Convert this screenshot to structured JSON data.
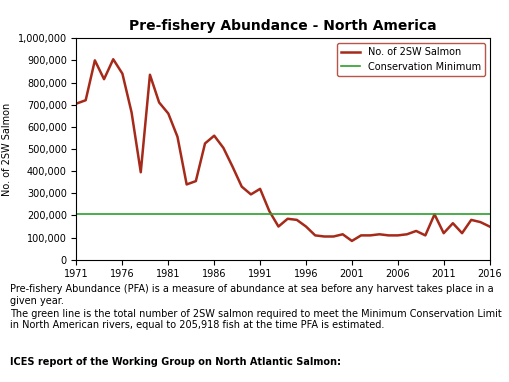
{
  "chart_data": {
    "type": "line",
    "title": "Pre-fishery Abundance - North America",
    "y_label": "No. of 2SW Salmon",
    "x": [
      1971,
      1972,
      1973,
      1974,
      1975,
      1976,
      1977,
      1978,
      1979,
      1980,
      1981,
      1982,
      1983,
      1984,
      1985,
      1986,
      1987,
      1988,
      1989,
      1990,
      1991,
      1992,
      1993,
      1994,
      1995,
      1996,
      1997,
      1998,
      1999,
      2000,
      2001,
      2002,
      2003,
      2004,
      2005,
      2006,
      2007,
      2008,
      2009,
      2010,
      2011,
      2012,
      2013,
      2014,
      2015,
      2016
    ],
    "series": [
      {
        "name": "No. of 2SW Salmon",
        "color": "#a52a1a",
        "values": [
          705000,
          720000,
          900000,
          815000,
          905000,
          840000,
          665000,
          395000,
          835000,
          710000,
          660000,
          555000,
          340000,
          355000,
          525000,
          560000,
          505000,
          420000,
          330000,
          295000,
          320000,
          220000,
          150000,
          185000,
          180000,
          150000,
          110000,
          105000,
          105000,
          115000,
          85000,
          110000,
          110000,
          115000,
          110000,
          110000,
          115000,
          130000,
          110000,
          205000,
          120000,
          165000,
          120000,
          180000,
          170000,
          150000
        ]
      },
      {
        "name": "Conservation Minimum",
        "color": "#2ca02c",
        "values": [
          205918,
          205918,
          205918,
          205918,
          205918,
          205918,
          205918,
          205918,
          205918,
          205918,
          205918,
          205918,
          205918,
          205918,
          205918,
          205918,
          205918,
          205918,
          205918,
          205918,
          205918,
          205918,
          205918,
          205918,
          205918,
          205918,
          205918,
          205918,
          205918,
          205918,
          205918,
          205918,
          205918,
          205918,
          205918,
          205918,
          205918,
          205918,
          205918,
          205918,
          205918,
          205918,
          205918,
          205918,
          205918,
          205918
        ]
      }
    ],
    "xlim": [
      1971,
      2016
    ],
    "xticks": [
      1971,
      1976,
      1981,
      1986,
      1991,
      1996,
      2001,
      2006,
      2011,
      2016
    ],
    "ylim": [
      0,
      1000000
    ],
    "yticks": [
      0,
      {
        "value": 100000,
        "label": "100,000"
      },
      {
        "value": 200000,
        "label": "200,000"
      },
      {
        "value": 300000,
        "label": "300,000"
      },
      {
        "value": 400000,
        "label": "400,000"
      },
      {
        "value": 500000,
        "label": "500,000"
      },
      {
        "value": 600000,
        "label": "600,000"
      },
      {
        "value": 700000,
        "label": "700,000"
      },
      {
        "value": 800000,
        "label": "800,000"
      },
      {
        "value": 900000,
        "label": "900,000"
      },
      {
        "value": 1000000,
        "label": "1,000,000"
      }
    ],
    "grid": false,
    "legend": "upper right",
    "annotations": [
      "Pre-fishery Abundance (PFA) is a measure of abundance at sea before any harvest takes place in a given year.",
      "The green line is the total number of 2SW salmon required to meet the Minimum Conservation Limit in North American rivers, equal to 205,918 fish at the time PFA is estimated.",
      "ICES report of the Working Group on North Atlantic Salmon:"
    ]
  }
}
